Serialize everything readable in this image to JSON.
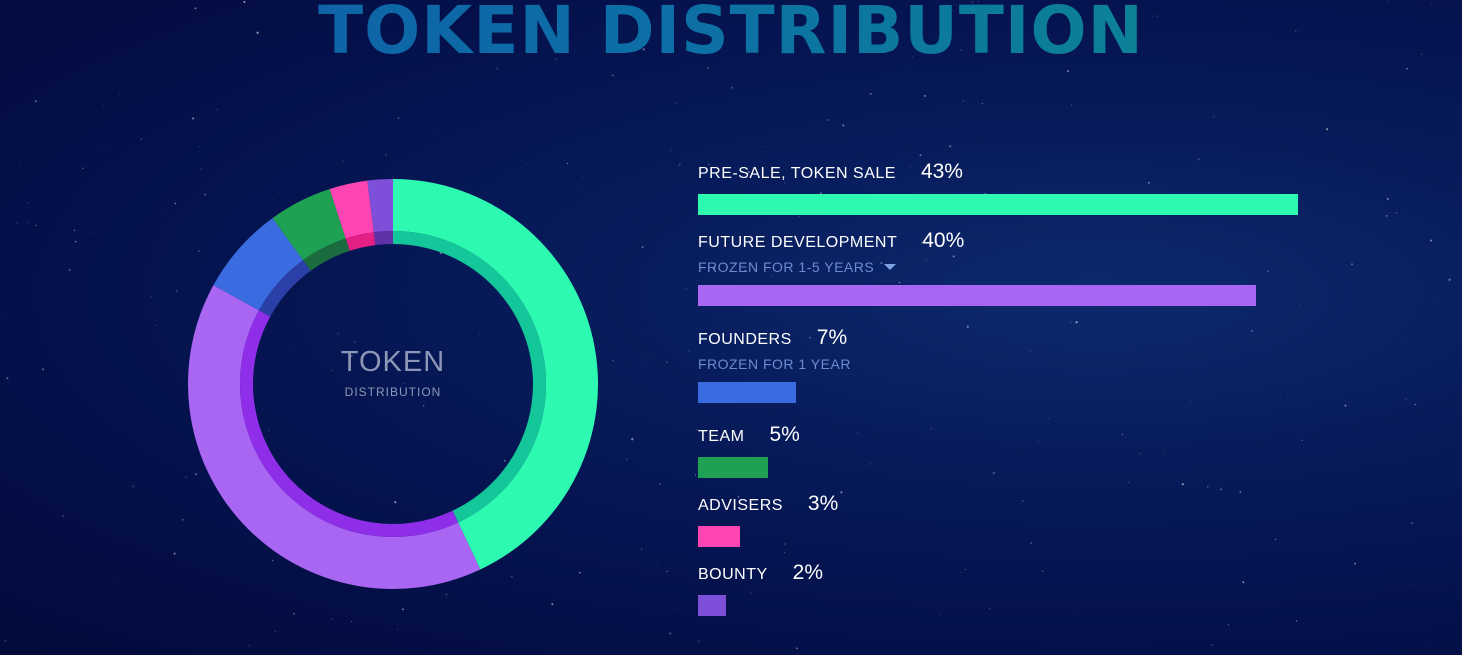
{
  "page_title": "TOKEN DISTRIBUTION",
  "center": {
    "title": "TOKEN",
    "subtitle": "DISTRIBUTION"
  },
  "chart_data": {
    "type": "pie",
    "title": "TOKEN DISTRIBUTION",
    "categories": [
      "PRE-SALE, TOKEN SALE",
      "FUTURE DEVELOPMENT",
      "FOUNDERS",
      "TEAM",
      "ADVISERS",
      "BOUNTY"
    ],
    "values": [
      43,
      40,
      7,
      5,
      3,
      2
    ],
    "colors": [
      "#2dfab0",
      "#a866f2",
      "#3b6be0",
      "#1fa153",
      "#ff45b4",
      "#7e4fd8"
    ],
    "inner_colors": [
      "#14c79a",
      "#8f2ee8",
      "#2a3fa8",
      "#1a6b3e",
      "#e41f85",
      "#5e32a8"
    ]
  },
  "legend": [
    {
      "label": "PRE-SALE, TOKEN SALE",
      "pct": "43%",
      "note": "",
      "has_caret": false
    },
    {
      "label": "FUTURE DEVELOPMENT",
      "pct": "40%",
      "note": "FROZEN FOR 1-5 YEARS",
      "has_caret": true
    },
    {
      "label": "FOUNDERS",
      "pct": "7%",
      "note": "FROZEN FOR 1 YEAR",
      "has_caret": false
    },
    {
      "label": "TEAM",
      "pct": "5%",
      "note": "",
      "has_caret": false
    },
    {
      "label": "ADVISERS",
      "pct": "3%",
      "note": "",
      "has_caret": false
    },
    {
      "label": "BOUNTY",
      "pct": "2%",
      "note": "",
      "has_caret": false
    }
  ]
}
